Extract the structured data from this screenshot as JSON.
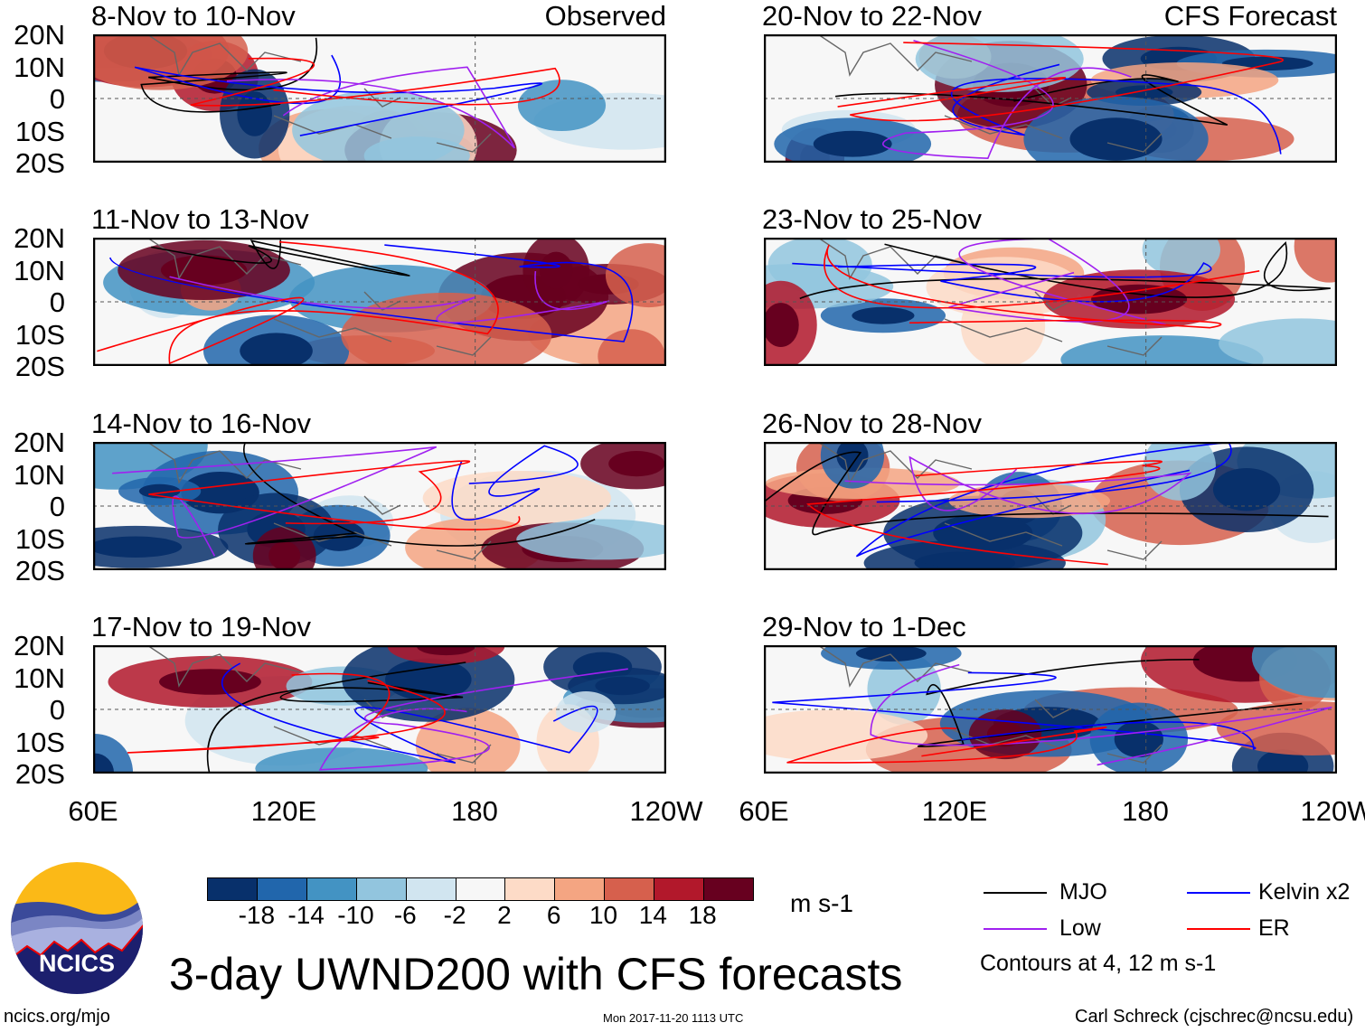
{
  "panels_left": [
    {
      "title": "8-Nov to 10-Nov",
      "tag": "Observed"
    },
    {
      "title": "11-Nov to 13-Nov"
    },
    {
      "title": "14-Nov to 16-Nov"
    },
    {
      "title": "17-Nov to 19-Nov"
    }
  ],
  "panels_right": [
    {
      "title": "20-Nov to 22-Nov",
      "tag": "CFS Forecast"
    },
    {
      "title": "23-Nov to 25-Nov"
    },
    {
      "title": "26-Nov to 28-Nov"
    },
    {
      "title": "29-Nov to 1-Dec"
    }
  ],
  "lat_labels": [
    "20N",
    "10N",
    "0",
    "10S",
    "20S"
  ],
  "lon_labels": [
    "60E",
    "120E",
    "180",
    "120W"
  ],
  "colorbar": {
    "labels": [
      "-18",
      "-14",
      "-10",
      "-6",
      "-2",
      "2",
      "6",
      "10",
      "14",
      "18"
    ],
    "colors": [
      "#08306b",
      "#2166ac",
      "#4393c3",
      "#92c5de",
      "#d1e5f0",
      "#f7f7f7",
      "#fddbc7",
      "#f4a582",
      "#d6604d",
      "#b2182b",
      "#67001f"
    ],
    "units": "m s-1"
  },
  "legend": {
    "items": [
      {
        "label": "MJO",
        "color": "#000000"
      },
      {
        "label": "Kelvin x2",
        "color": "#0000ff"
      },
      {
        "label": "Low",
        "color": "#a020f0"
      },
      {
        "label": "ER",
        "color": "#ff0000"
      }
    ],
    "note": "Contours at 4, 12 m s-1"
  },
  "title": "3-day UWND200 with CFS forecasts",
  "logo_text": "NCICS",
  "url": "ncics.org/mjo",
  "timestamp": "Mon 2017-11-20 1113 UTC",
  "author": "Carl Schreck (cjschrec@ncsu.edu)"
}
